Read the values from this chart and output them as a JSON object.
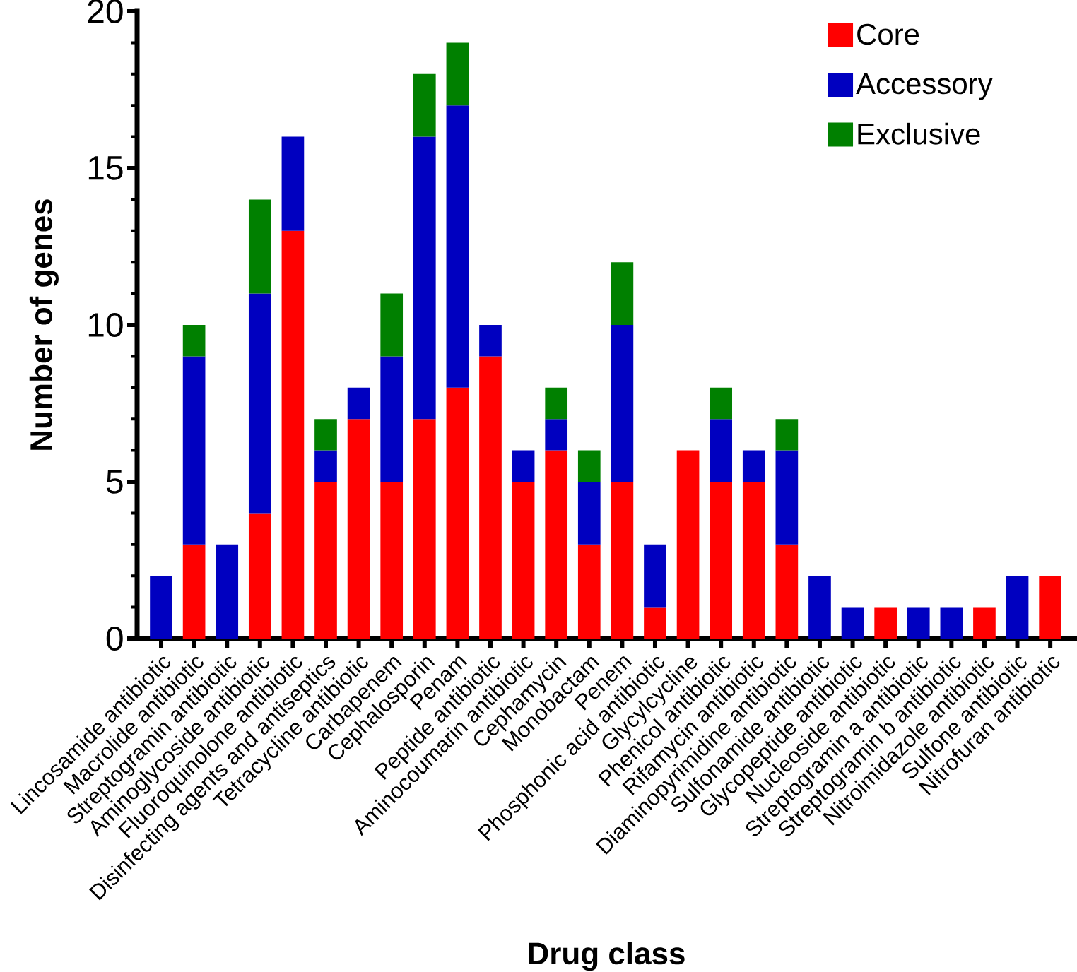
{
  "chart_data": {
    "type": "bar",
    "stacked": true,
    "xlabel": "Drug class",
    "ylabel": "Number of genes",
    "categories": [
      "Lincosamide antibiotic",
      "Macrolide antibiotic",
      "Streptogramin antibiotic",
      "Aminoglycoside antibiotic",
      "Fluoroquinolone antibiotic",
      "Disinfecting agents and antiseptics",
      "Tetracycline antibiotic",
      "Carbapenem",
      "Cephalosporin",
      "Penam",
      "Peptide antibiotic",
      "Aminocoumarin antibiotic",
      "Cephamycin",
      "Monobactam",
      "Penem",
      "Phosphonic acid antibiotic",
      "Glycylcycline",
      "Phenicol antibiotic",
      "Rifamycin antibiotic",
      "Diaminopyrimidine antibiotic",
      "Sulfonamide antibiotic",
      "Glycopeptide antibiotic",
      "Nucleoside antibiotic",
      "Streptogramin a antibiotic",
      "Streptogramin b antibiotic",
      "Nitroimidazole antibiotic",
      "Sulfone antibiotic",
      "Nitrofuran antibiotic"
    ],
    "series": [
      {
        "name": "Core",
        "color": "#ff0000",
        "values": [
          0,
          3,
          0,
          4,
          13,
          5,
          7,
          5,
          7,
          8,
          9,
          5,
          6,
          3,
          5,
          1,
          6,
          5,
          5,
          3,
          0,
          0,
          1,
          0,
          0,
          1,
          0,
          2
        ]
      },
      {
        "name": "Accessory",
        "color": "#0000c0",
        "values": [
          2,
          6,
          3,
          7,
          3,
          1,
          1,
          4,
          9,
          9,
          1,
          1,
          1,
          2,
          5,
          2,
          0,
          2,
          1,
          3,
          2,
          1,
          0,
          1,
          1,
          0,
          2,
          0
        ]
      },
      {
        "name": "Exclusive",
        "color": "#008000",
        "values": [
          0,
          1,
          0,
          3,
          0,
          1,
          0,
          2,
          2,
          2,
          0,
          0,
          1,
          1,
          2,
          0,
          0,
          1,
          0,
          1,
          0,
          0,
          0,
          0,
          0,
          0,
          0,
          0
        ]
      }
    ],
    "ylim": [
      0,
      20
    ],
    "yticks": [
      0,
      {
        "value": 1,
        "label": null
      },
      {
        "value": 2,
        "label": null
      },
      {
        "value": 3,
        "label": null
      },
      {
        "value": 4,
        "label": null
      },
      5,
      {
        "value": 6,
        "label": null
      },
      {
        "value": 7,
        "label": null
      },
      {
        "value": 8,
        "label": null
      },
      {
        "value": 9,
        "label": null
      },
      10,
      {
        "value": 11,
        "label": null
      },
      {
        "value": 12,
        "label": null
      },
      {
        "value": 13,
        "label": null
      },
      {
        "value": 14,
        "label": null
      },
      15,
      {
        "value": 16,
        "label": null
      },
      {
        "value": 17,
        "label": null
      },
      {
        "value": 18,
        "label": null
      },
      {
        "value": 19,
        "label": null
      },
      20
    ],
    "legend": "top right"
  }
}
